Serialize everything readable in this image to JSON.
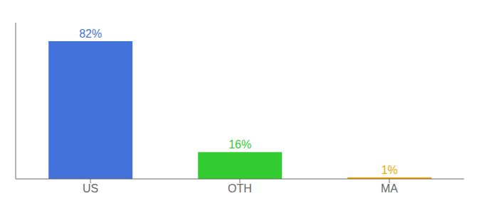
{
  "chart_data": {
    "type": "bar",
    "categories": [
      "US",
      "OTH",
      "MA"
    ],
    "values": [
      82,
      16,
      1
    ],
    "value_labels": [
      "82%",
      "16%",
      "1%"
    ],
    "colors": [
      "#4472db",
      "#33cc33",
      "#f0a500"
    ],
    "ylim": [
      0,
      93
    ],
    "grid": false,
    "data_labels": true,
    "tick_labels": "x"
  }
}
